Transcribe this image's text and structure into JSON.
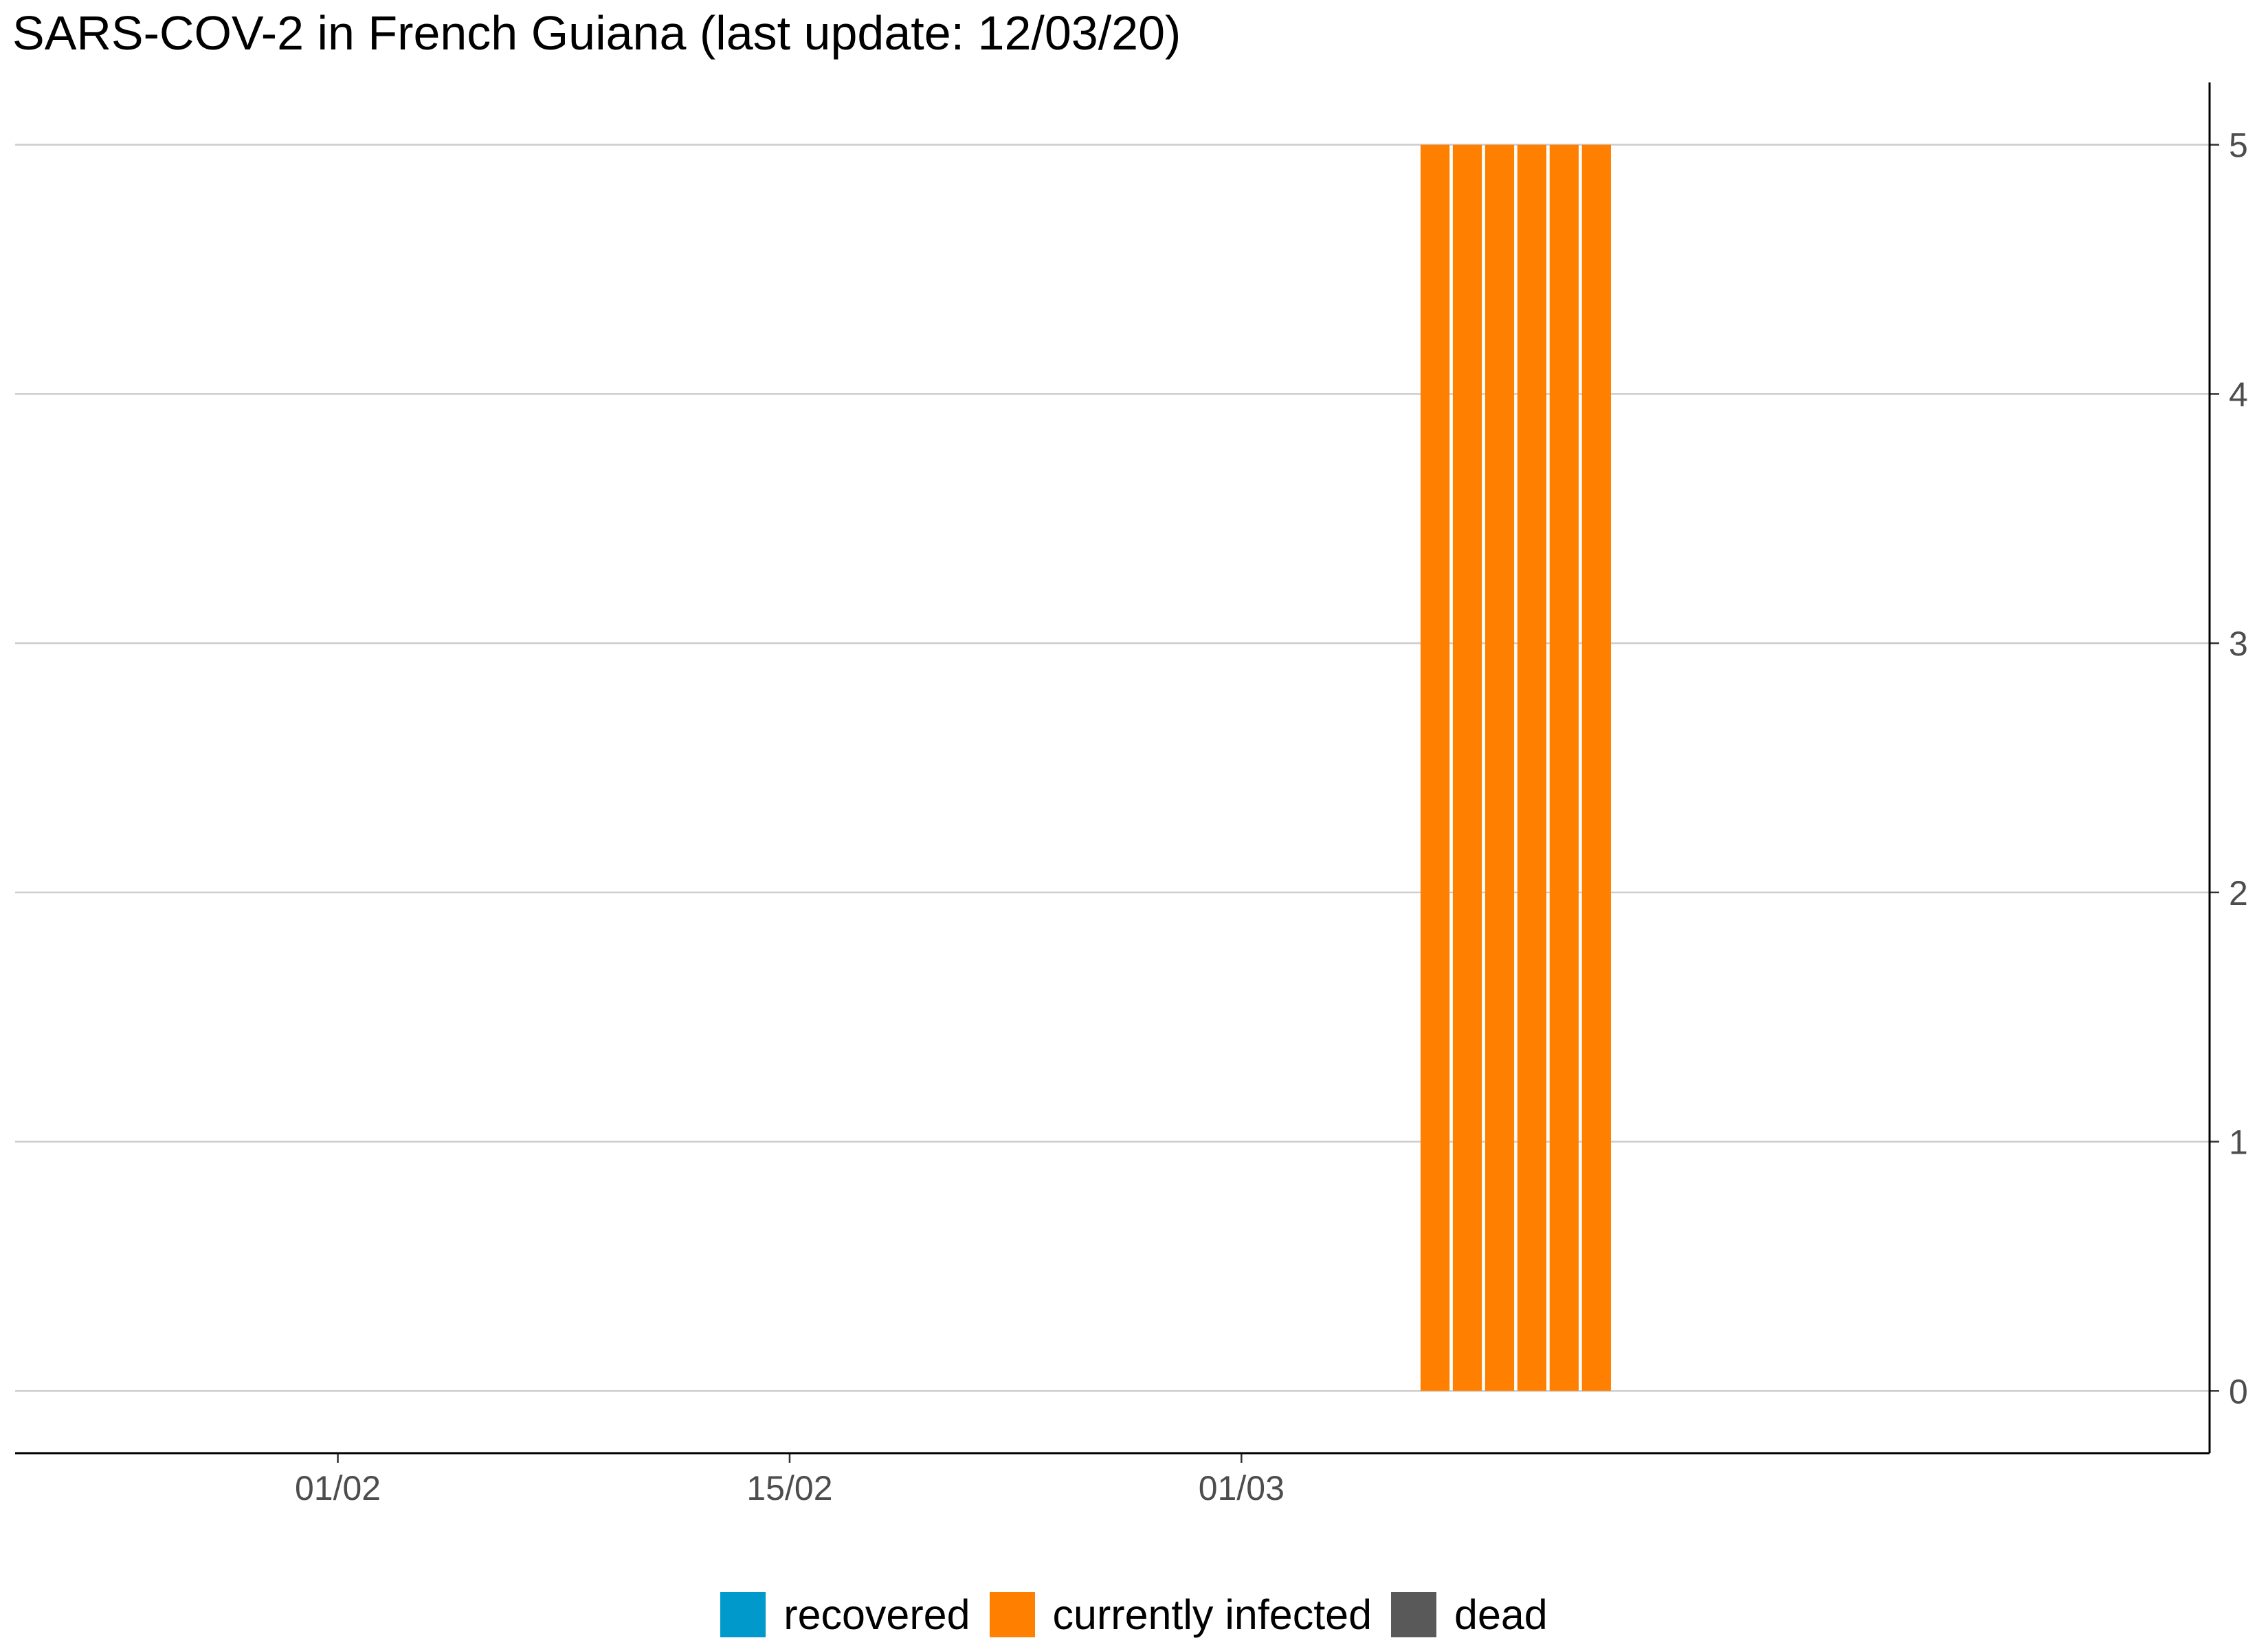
{
  "title": "SARS-COV-2 in French Guiana (last update: 12/03/20)",
  "chart_data": {
    "type": "bar",
    "stacked": true,
    "title": "SARS-COV-2 in French Guiana (last update: 12/03/20)",
    "xlabel": "",
    "ylabel": "",
    "y_axis_position": "right",
    "x_axis_range": [
      "2021-01-22",
      "2021-03-31"
    ],
    "y_axis_range": [
      -0.25,
      5.25
    ],
    "x_ticks": [
      {
        "date": "2021-02-01",
        "label": "01/02"
      },
      {
        "date": "2021-02-15",
        "label": "15/02"
      },
      {
        "date": "2021-03-01",
        "label": "01/03"
      }
    ],
    "y_ticks": [
      0,
      1,
      2,
      3,
      4,
      5
    ],
    "grid": "horizontal major",
    "legend_position": "bottom",
    "series": [
      {
        "name": "recovered",
        "color": "#0099cc",
        "points": [
          {
            "date": "2021-03-07",
            "value": 0
          },
          {
            "date": "2021-03-08",
            "value": 0
          },
          {
            "date": "2021-03-09",
            "value": 0
          },
          {
            "date": "2021-03-10",
            "value": 0
          },
          {
            "date": "2021-03-11",
            "value": 0
          },
          {
            "date": "2021-03-12",
            "value": 0
          }
        ]
      },
      {
        "name": "currently infected",
        "color": "#ff8000",
        "points": [
          {
            "date": "2021-03-07",
            "value": 5
          },
          {
            "date": "2021-03-08",
            "value": 5
          },
          {
            "date": "2021-03-09",
            "value": 5
          },
          {
            "date": "2021-03-10",
            "value": 5
          },
          {
            "date": "2021-03-11",
            "value": 5
          },
          {
            "date": "2021-03-12",
            "value": 5
          }
        ]
      },
      {
        "name": "dead",
        "color": "#595959",
        "points": [
          {
            "date": "2021-03-07",
            "value": 0
          },
          {
            "date": "2021-03-08",
            "value": 0
          },
          {
            "date": "2021-03-09",
            "value": 0
          },
          {
            "date": "2021-03-10",
            "value": 0
          },
          {
            "date": "2021-03-11",
            "value": 0
          },
          {
            "date": "2021-03-12",
            "value": 0
          }
        ]
      }
    ]
  },
  "legend": {
    "items": [
      {
        "label": "recovered",
        "color": "#0099cc"
      },
      {
        "label": "currently infected",
        "color": "#ff8000"
      },
      {
        "label": "dead",
        "color": "#595959"
      }
    ]
  }
}
